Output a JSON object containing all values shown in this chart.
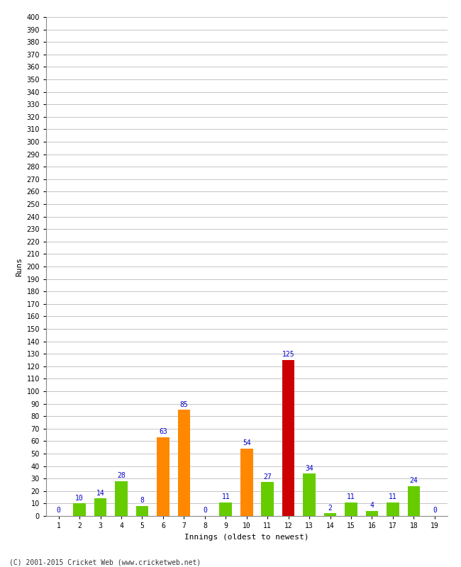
{
  "categories": [
    "1",
    "2",
    "3",
    "4",
    "5",
    "6",
    "7",
    "8",
    "9",
    "10",
    "11",
    "12",
    "13",
    "14",
    "15",
    "16",
    "17",
    "18",
    "19"
  ],
  "values": [
    0,
    10,
    14,
    28,
    8,
    63,
    85,
    0,
    11,
    54,
    27,
    125,
    34,
    2,
    11,
    4,
    11,
    24,
    0
  ],
  "bar_colors": [
    "#66cc00",
    "#66cc00",
    "#66cc00",
    "#66cc00",
    "#66cc00",
    "#ff8800",
    "#ff8800",
    "#66cc00",
    "#66cc00",
    "#ff8800",
    "#66cc00",
    "#cc0000",
    "#66cc00",
    "#66cc00",
    "#66cc00",
    "#66cc00",
    "#66cc00",
    "#66cc00",
    "#66cc00"
  ],
  "xlabel": "Innings (oldest to newest)",
  "ylabel": "Runs",
  "ylim": [
    0,
    400
  ],
  "ytick_step": 10,
  "label_color": "#0000cc",
  "label_fontsize": 7,
  "axis_fontsize": 8,
  "tick_fontsize": 7,
  "background_color": "#ffffff",
  "grid_color": "#bbbbbb",
  "footer": "(C) 2001-2015 Cricket Web (www.cricketweb.net)"
}
